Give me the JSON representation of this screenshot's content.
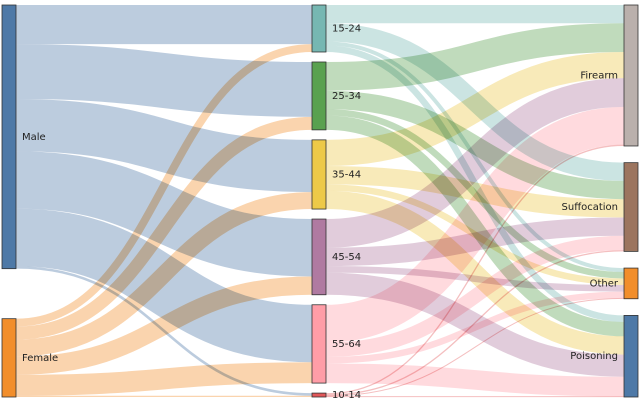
{
  "diagram": {
    "type": "sankey",
    "columns": [
      [
        {
          "id": "male",
          "label": "Male",
          "color": "#4E79A7"
        },
        {
          "id": "female",
          "label": "Female",
          "color": "#F28E2B"
        }
      ],
      [
        {
          "id": "a1524",
          "label": "15-24",
          "color": "#76B7B2"
        },
        {
          "id": "a2534",
          "label": "25-34",
          "color": "#59A14F"
        },
        {
          "id": "a3544",
          "label": "35-44",
          "color": "#EDC948"
        },
        {
          "id": "a4554",
          "label": "45-54",
          "color": "#B07AA1"
        },
        {
          "id": "a5564",
          "label": "55-64",
          "color": "#FF9DA7"
        },
        {
          "id": "a1014",
          "label": "10-14",
          "color": "#E15759"
        }
      ],
      [
        {
          "id": "firearm",
          "label": "Firearm",
          "color": "#BAB0AC"
        },
        {
          "id": "suffocation",
          "label": "Suffocation",
          "color": "#9C755F"
        },
        {
          "id": "other",
          "label": "Other",
          "color": "#F28E2B"
        },
        {
          "id": "poisoning",
          "label": "Poisoning",
          "color": "#4E79A7"
        }
      ]
    ],
    "links": [
      {
        "source": "male",
        "target": "a1524",
        "value": 30
      },
      {
        "source": "male",
        "target": "a2534",
        "value": 42
      },
      {
        "source": "male",
        "target": "a3544",
        "value": 40
      },
      {
        "source": "male",
        "target": "a4554",
        "value": 44
      },
      {
        "source": "male",
        "target": "a5564",
        "value": 44
      },
      {
        "source": "male",
        "target": "a1014",
        "value": 2
      },
      {
        "source": "female",
        "target": "a1524",
        "value": 6
      },
      {
        "source": "female",
        "target": "a2534",
        "value": 10
      },
      {
        "source": "female",
        "target": "a3544",
        "value": 13
      },
      {
        "source": "female",
        "target": "a4554",
        "value": 14
      },
      {
        "source": "female",
        "target": "a5564",
        "value": 16
      },
      {
        "source": "female",
        "target": "a1014",
        "value": 1
      },
      {
        "source": "a1524",
        "target": "firearm",
        "value": 14
      },
      {
        "source": "a1524",
        "target": "suffocation",
        "value": 14
      },
      {
        "source": "a1524",
        "target": "other",
        "value": 3
      },
      {
        "source": "a1524",
        "target": "poisoning",
        "value": 5
      },
      {
        "source": "a2534",
        "target": "firearm",
        "value": 22
      },
      {
        "source": "a2534",
        "target": "suffocation",
        "value": 14
      },
      {
        "source": "a2534",
        "target": "other",
        "value": 5
      },
      {
        "source": "a2534",
        "target": "poisoning",
        "value": 11
      },
      {
        "source": "a3544",
        "target": "firearm",
        "value": 20
      },
      {
        "source": "a3544",
        "target": "suffocation",
        "value": 14
      },
      {
        "source": "a3544",
        "target": "other",
        "value": 5
      },
      {
        "source": "a3544",
        "target": "poisoning",
        "value": 14
      },
      {
        "source": "a4554",
        "target": "firearm",
        "value": 22
      },
      {
        "source": "a4554",
        "target": "suffocation",
        "value": 14
      },
      {
        "source": "a4554",
        "target": "other",
        "value": 5
      },
      {
        "source": "a4554",
        "target": "poisoning",
        "value": 17
      },
      {
        "source": "a5564",
        "target": "firearm",
        "value": 29
      },
      {
        "source": "a5564",
        "target": "suffocation",
        "value": 11
      },
      {
        "source": "a5564",
        "target": "other",
        "value": 5
      },
      {
        "source": "a5564",
        "target": "poisoning",
        "value": 15
      },
      {
        "source": "a1014",
        "target": "firearm",
        "value": 1
      },
      {
        "source": "a1014",
        "target": "suffocation",
        "value": 1
      },
      {
        "source": "a1014",
        "target": "other",
        "value": 0.5
      },
      {
        "source": "a1014",
        "target": "poisoning",
        "value": 0.5
      }
    ]
  }
}
